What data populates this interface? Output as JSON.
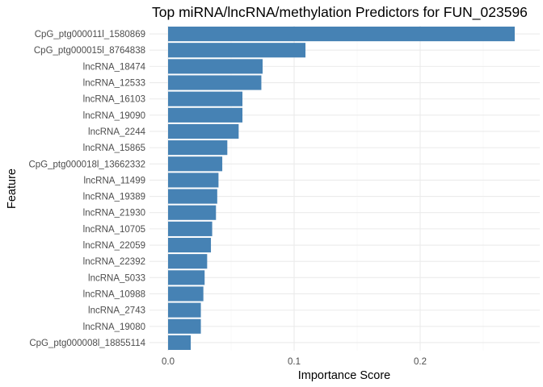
{
  "chart_data": {
    "type": "bar",
    "orientation": "horizontal",
    "title": "Top miRNA/lncRNA/methylation Predictors for FUN_023596",
    "xlabel": "Importance Score",
    "ylabel": "Feature",
    "xlim": [
      -0.018,
      0.282
    ],
    "xticks": [
      0.0,
      0.1,
      0.2
    ],
    "xtick_labels": [
      "0.0",
      "0.1",
      "0.2"
    ],
    "grid": true,
    "bar_color": "#4682B4",
    "categories": [
      "CpG_ptg000011l_1580869",
      "CpG_ptg000015l_8764838",
      "lncRNA_18474",
      "lncRNA_12533",
      "lncRNA_16103",
      "lncRNA_19090",
      "lncRNA_2244",
      "lncRNA_15865",
      "CpG_ptg000018l_13662332",
      "lncRNA_11499",
      "lncRNA_19389",
      "lncRNA_21930",
      "lncRNA_10705",
      "lncRNA_22059",
      "lncRNA_22392",
      "lncRNA_5033",
      "lncRNA_10988",
      "lncRNA_2743",
      "lncRNA_19080",
      "CpG_ptg000008l_18855114"
    ],
    "values": [
      0.275,
      0.109,
      0.075,
      0.074,
      0.059,
      0.059,
      0.056,
      0.047,
      0.043,
      0.04,
      0.039,
      0.038,
      0.035,
      0.034,
      0.031,
      0.029,
      0.028,
      0.026,
      0.026,
      0.018
    ]
  }
}
